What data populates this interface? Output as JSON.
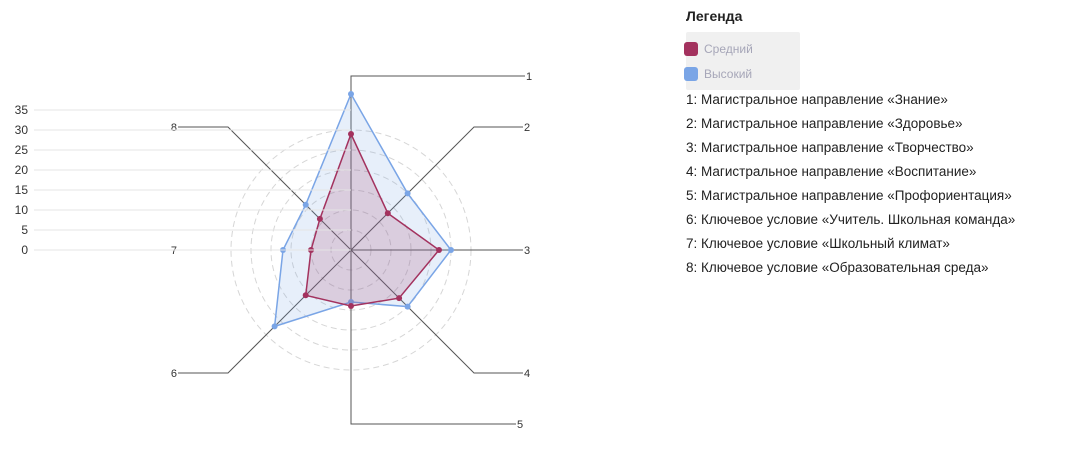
{
  "legend": {
    "title": "Легенда"
  },
  "categories": [
    "1: Магистральное направление «Знание»",
    "2: Магистральное направление «Здоровье»",
    "3: Магистральное направление «Творчество»",
    "4: Магистральное направление «Воспитание»",
    "5: Магистральное направление «Профориентация»",
    "6: Ключевое условие «Учитель. Школьная команда»",
    "7: Ключевое условие «Школьный климат»",
    "8: Ключевое условие «Образовательная среда»"
  ],
  "chart_data": {
    "type": "radar",
    "axes": [
      "1",
      "2",
      "3",
      "4",
      "5",
      "6",
      "7",
      "8"
    ],
    "ylim": [
      0,
      35
    ],
    "yticks": [
      "0",
      "5",
      "10",
      "15",
      "20",
      "25",
      "30",
      "35"
    ],
    "grid": true,
    "legend_position": "top-right",
    "series": [
      {
        "name": "Средний",
        "color": "#a3325e",
        "values": [
          29,
          13,
          22,
          17,
          14,
          16,
          10,
          11
        ]
      },
      {
        "name": "Высокий",
        "color": "#7aa5e6",
        "values": [
          39,
          20,
          25,
          20,
          13,
          27,
          17,
          16
        ]
      }
    ]
  }
}
